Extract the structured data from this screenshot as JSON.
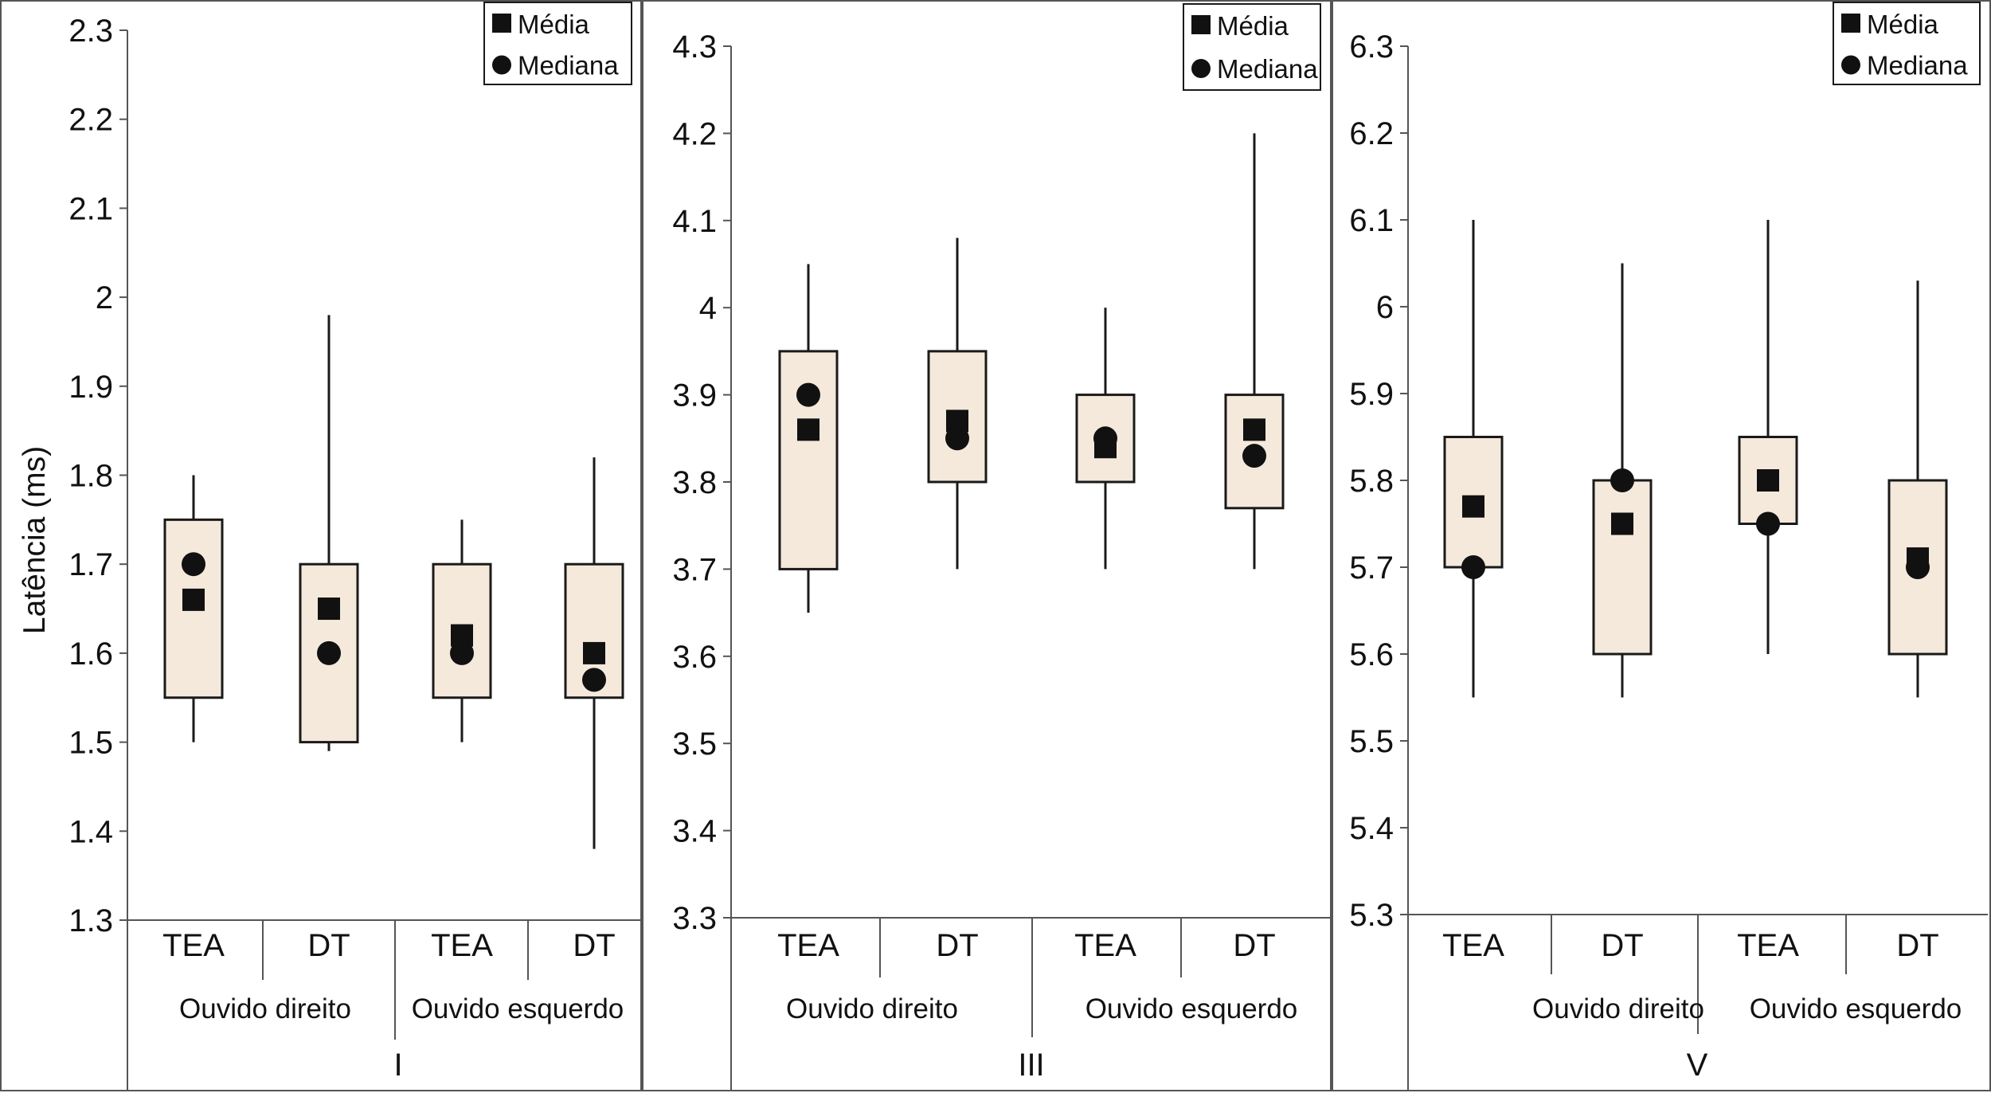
{
  "chart_data": {
    "type": "boxplot",
    "ylabel": "Latência (ms)",
    "legend": {
      "position": "top-right",
      "entries": [
        {
          "label": "Média",
          "marker": "square"
        },
        {
          "label": "Mediana",
          "marker": "circle"
        }
      ]
    },
    "colors": {
      "box_fill": "#f5e9dc",
      "stroke": "#1a1a1a",
      "axis": "#555555",
      "marker": "#111111"
    },
    "panels": [
      {
        "id": "I",
        "title": "I",
        "ylim": [
          1.3,
          2.3
        ],
        "ticks": [
          "1.3",
          "1.4",
          "1.5",
          "1.6",
          "1.7",
          "1.8",
          "1.9",
          "2",
          "2.1",
          "2.2",
          "2.3"
        ],
        "groups": [
          {
            "label": "Ouvido direito",
            "categories": [
              "TEA",
              "DT"
            ]
          },
          {
            "label": "Ouvido esquerdo",
            "categories": [
              "TEA",
              "DT"
            ]
          }
        ],
        "boxes": [
          {
            "category": "TEA",
            "group": "Ouvido direito",
            "whisker_low": 1.5,
            "q1": 1.55,
            "q3": 1.75,
            "whisker_high": 1.8,
            "mean": 1.66,
            "median": 1.7
          },
          {
            "category": "DT",
            "group": "Ouvido direito",
            "whisker_low": 1.49,
            "q1": 1.5,
            "q3": 1.7,
            "whisker_high": 1.98,
            "mean": 1.65,
            "median": 1.6
          },
          {
            "category": "TEA",
            "group": "Ouvido esquerdo",
            "whisker_low": 1.5,
            "q1": 1.55,
            "q3": 1.7,
            "whisker_high": 1.75,
            "mean": 1.62,
            "median": 1.6
          },
          {
            "category": "DT",
            "group": "Ouvido esquerdo",
            "whisker_low": 1.38,
            "q1": 1.55,
            "q3": 1.7,
            "whisker_high": 1.82,
            "mean": 1.6,
            "median": 1.57
          }
        ]
      },
      {
        "id": "III",
        "title": "III",
        "ylim": [
          3.3,
          4.3
        ],
        "ticks": [
          "3.3",
          "3.4",
          "3.5",
          "3.6",
          "3.7",
          "3.8",
          "3.9",
          "4",
          "4.1",
          "4.2",
          "4.3"
        ],
        "groups": [
          {
            "label": "Ouvido direito",
            "categories": [
              "TEA",
              "DT"
            ]
          },
          {
            "label": "Ouvido esquerdo",
            "categories": [
              "TEA",
              "DT"
            ]
          }
        ],
        "boxes": [
          {
            "category": "TEA",
            "group": "Ouvido direito",
            "whisker_low": 3.65,
            "q1": 3.7,
            "q3": 3.95,
            "whisker_high": 4.05,
            "mean": 3.86,
            "median": 3.9
          },
          {
            "category": "DT",
            "group": "Ouvido direito",
            "whisker_low": 3.7,
            "q1": 3.8,
            "q3": 3.95,
            "whisker_high": 4.08,
            "mean": 3.87,
            "median": 3.85
          },
          {
            "category": "TEA",
            "group": "Ouvido esquerdo",
            "whisker_low": 3.7,
            "q1": 3.8,
            "q3": 3.9,
            "whisker_high": 4.0,
            "mean": 3.84,
            "median": 3.85
          },
          {
            "category": "DT",
            "group": "Ouvido esquerdo",
            "whisker_low": 3.7,
            "q1": 3.77,
            "q3": 3.9,
            "whisker_high": 4.2,
            "mean": 3.86,
            "median": 3.83
          }
        ]
      },
      {
        "id": "V",
        "title": "V",
        "ylim": [
          5.3,
          6.3
        ],
        "ticks": [
          "5.3",
          "5.4",
          "5.5",
          "5.6",
          "5.7",
          "5.8",
          "5.9",
          "6",
          "6.1",
          "6.2",
          "6.3"
        ],
        "groups": [
          {
            "label": "Ouvido direito",
            "categories": [
              "TEA",
              "DT"
            ]
          },
          {
            "label": "Ouvido esquerdo",
            "categories": [
              "TEA",
              "DT"
            ]
          }
        ],
        "boxes": [
          {
            "category": "TEA",
            "group": "Ouvido direito",
            "whisker_low": 5.55,
            "q1": 5.7,
            "q3": 5.85,
            "whisker_high": 6.1,
            "mean": 5.77,
            "median": 5.7
          },
          {
            "category": "DT",
            "group": "Ouvido direito",
            "whisker_low": 5.55,
            "q1": 5.6,
            "q3": 5.8,
            "whisker_high": 6.05,
            "mean": 5.75,
            "median": 5.8
          },
          {
            "category": "TEA",
            "group": "Ouvido esquerdo",
            "whisker_low": 5.6,
            "q1": 5.75,
            "q3": 5.85,
            "whisker_high": 6.1,
            "mean": 5.8,
            "median": 5.75
          },
          {
            "category": "DT",
            "group": "Ouvido esquerdo",
            "whisker_low": 5.55,
            "q1": 5.6,
            "q3": 5.8,
            "whisker_high": 6.03,
            "mean": 5.71,
            "median": 5.7
          }
        ]
      }
    ]
  }
}
